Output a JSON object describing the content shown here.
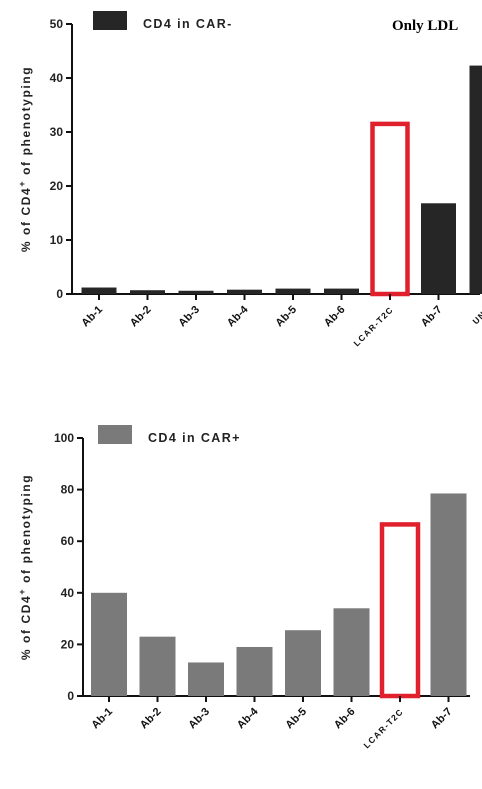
{
  "page": {
    "top_title": "Only LDL"
  },
  "colors": {
    "dark_bar": "#262626",
    "gray_bar": "#7a7a7a",
    "highlight": "#e0202c",
    "axis": "#111111"
  },
  "chart_data": [
    {
      "type": "bar",
      "legend": "CD4 in CAR-",
      "ylabel": "% of CD4+ of phenotyping",
      "ylabel_prefix": "% of CD4",
      "ylabel_sup": "+",
      "ylabel_suffix": " of phenotyping",
      "ylim": [
        0,
        50
      ],
      "yticks": [
        "0",
        "10",
        "20",
        "30",
        "40",
        "50"
      ],
      "categories": [
        "Ab-1",
        "Ab-2",
        "Ab-3",
        "Ab-4",
        "Ab-5",
        "Ab-6",
        "LCAR-T2C",
        "Ab-7",
        "UnT"
      ],
      "values": [
        1.2,
        0.7,
        0.6,
        0.8,
        1.0,
        1.0,
        null,
        16.8,
        42.3
      ],
      "highlight_category": "LCAR-T2C",
      "highlight_value": 31.5,
      "bar_color": "#262626",
      "legend_position": "top-left"
    },
    {
      "type": "bar",
      "legend": "CD4 in CAR+",
      "ylabel": "% of CD4+ of phenotyping",
      "ylabel_prefix": "% of CD4",
      "ylabel_sup": "+",
      "ylabel_suffix": " of phenotyping",
      "ylim": [
        0,
        100
      ],
      "yticks": [
        "0",
        "20",
        "40",
        "60",
        "80",
        "100"
      ],
      "categories": [
        "Ab-1",
        "Ab-2",
        "Ab-3",
        "Ab-4",
        "Ab-5",
        "Ab-6",
        "LCAR-T2C",
        "Ab-7"
      ],
      "values": [
        40,
        23,
        13,
        19,
        25.5,
        34,
        null,
        78.5
      ],
      "highlight_category": "LCAR-T2C",
      "highlight_value": 66.5,
      "bar_color": "#7a7a7a",
      "legend_position": "top-left"
    }
  ]
}
